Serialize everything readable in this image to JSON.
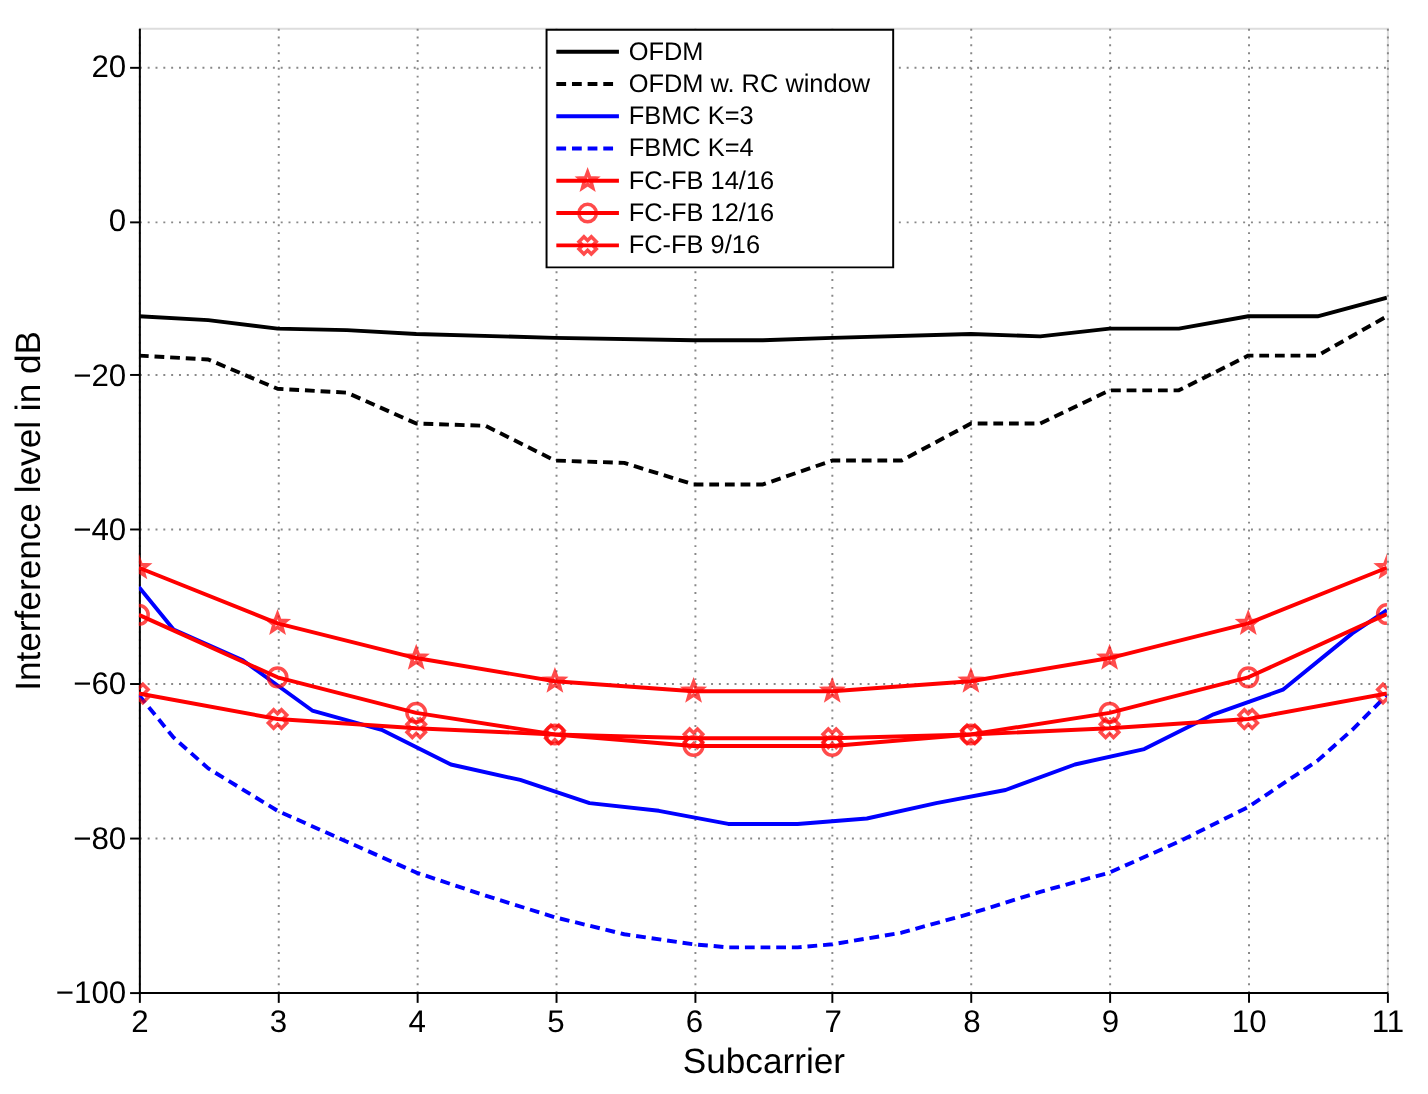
{
  "chart_data": {
    "type": "line",
    "xlabel": "Subcarrier",
    "ylabel": "Interference level in dB",
    "xlim": [
      2,
      11
    ],
    "xticks": [
      2,
      3,
      4,
      5,
      6,
      7,
      8,
      9,
      10,
      11
    ],
    "ylim": [
      -100,
      25
    ],
    "yticks": [
      -100,
      -80,
      -60,
      -40,
      -20,
      0,
      20
    ],
    "grid": true,
    "legend": "top",
    "series": [
      {
        "name": "OFDM",
        "color": "#000000",
        "line_style": "solid",
        "marker": "none",
        "x": [
          2,
          2.5,
          3,
          3.5,
          4,
          5,
          6,
          6.5,
          7,
          8,
          8.5,
          9,
          9.5,
          10,
          10.5,
          11
        ],
        "values": [
          -12.4,
          -12.9,
          -14,
          -14.2,
          -14.7,
          -15.2,
          -15.5,
          -15.5,
          -15.2,
          -14.7,
          -15,
          -14,
          -14,
          -12.4,
          -12.4,
          -10
        ]
      },
      {
        "name": "OFDM w. RC window",
        "color": "#000000",
        "line_style": "dashed",
        "marker": "none",
        "x": [
          2,
          2.5,
          3,
          3.5,
          4,
          4.5,
          5,
          5.5,
          6,
          6.5,
          7,
          7.5,
          8,
          8.5,
          9,
          9.5,
          10,
          10.5,
          11
        ],
        "values": [
          -17.5,
          -18,
          -21.8,
          -22.3,
          -26.3,
          -26.6,
          -31.1,
          -31.4,
          -34.2,
          -34.2,
          -31.1,
          -31.1,
          -26.3,
          -26.3,
          -22,
          -22,
          -17.5,
          -17.5,
          -12.4
        ]
      },
      {
        "name": "FBMC K=3",
        "color": "#0000ff",
        "line_style": "solid",
        "marker": "none",
        "x": [
          2,
          2.25,
          2.75,
          3.25,
          3.75,
          4.25,
          4.75,
          5.25,
          5.75,
          6.25,
          6.75,
          7.25,
          7.75,
          8.25,
          8.75,
          9.25,
          9.75,
          10.25,
          10.75,
          11
        ],
        "values": [
          -47.5,
          -53,
          -57,
          -63.5,
          -66,
          -70.5,
          -72.5,
          -75.5,
          -76.5,
          -78.2,
          -78.2,
          -77.5,
          -75.5,
          -73.8,
          -70.5,
          -68.5,
          -64,
          -60.8,
          -53.5,
          -50.5
        ]
      },
      {
        "name": "FBMC K=4",
        "color": "#0000ff",
        "line_style": "dashed",
        "marker": "none",
        "x": [
          2,
          2.25,
          2.5,
          3,
          3.5,
          4,
          4.5,
          5,
          5.5,
          6,
          6.25,
          6.75,
          7,
          7.5,
          8,
          8.5,
          9,
          9.5,
          10,
          10.5,
          10.75,
          11
        ],
        "values": [
          -61.5,
          -67,
          -71,
          -76.5,
          -80.5,
          -84.5,
          -87.5,
          -90.3,
          -92.5,
          -93.8,
          -94.2,
          -94.2,
          -93.8,
          -92.3,
          -89.8,
          -87,
          -84.5,
          -80.5,
          -76,
          -70,
          -66,
          -61.5
        ]
      },
      {
        "name": "FC-FB 14/16",
        "color": "#ff0000",
        "line_style": "solid",
        "marker": "star",
        "x": [
          2,
          3,
          4,
          5,
          6,
          7,
          8,
          9,
          10,
          11
        ],
        "values": [
          -45,
          -52.2,
          -56.7,
          -59.7,
          -61,
          -61,
          -59.7,
          -56.7,
          -52.2,
          -45
        ]
      },
      {
        "name": "FC-FB 12/16",
        "color": "#ff0000",
        "line_style": "solid",
        "marker": "circle",
        "x": [
          2,
          3,
          4,
          5,
          6,
          7,
          8,
          9,
          10,
          11
        ],
        "values": [
          -51.1,
          -59.2,
          -63.8,
          -66.6,
          -68.1,
          -68.1,
          -66.6,
          -63.8,
          -59.2,
          -51
        ]
      },
      {
        "name": "FC-FB 9/16",
        "color": "#ff0000",
        "line_style": "solid",
        "marker": "cross",
        "x": [
          2,
          3,
          4,
          5,
          6,
          7,
          8,
          9,
          10,
          11
        ],
        "values": [
          -61.3,
          -64.6,
          -65.8,
          -66.6,
          -67.1,
          -67.1,
          -66.6,
          -65.8,
          -64.6,
          -61.3
        ]
      }
    ]
  }
}
